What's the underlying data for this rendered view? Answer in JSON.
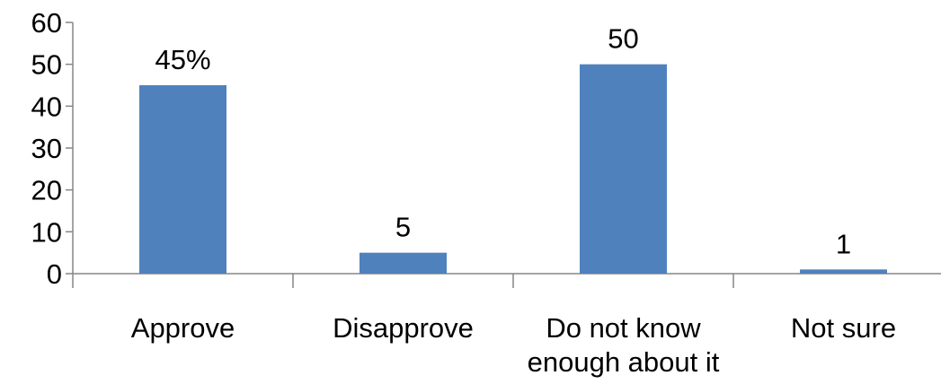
{
  "chart_data": {
    "type": "bar",
    "categories": [
      "Approve",
      "Disapprove",
      "Do not know enough about it",
      "Not sure"
    ],
    "category_label_lines": [
      [
        "Approve"
      ],
      [
        "Disapprove"
      ],
      [
        "Do not know",
        "enough about it"
      ],
      [
        "Not sure"
      ]
    ],
    "values": [
      45,
      5,
      50,
      1
    ],
    "data_labels": [
      "45%",
      "5",
      "50",
      "1"
    ],
    "title": "",
    "xlabel": "",
    "ylabel": "",
    "ylim": [
      0,
      60
    ],
    "yticks": [
      0,
      10,
      20,
      30,
      40,
      50,
      60
    ],
    "grid": false,
    "legend": "none",
    "bar_color": "#4F81BD",
    "axis_color": "#868686"
  }
}
